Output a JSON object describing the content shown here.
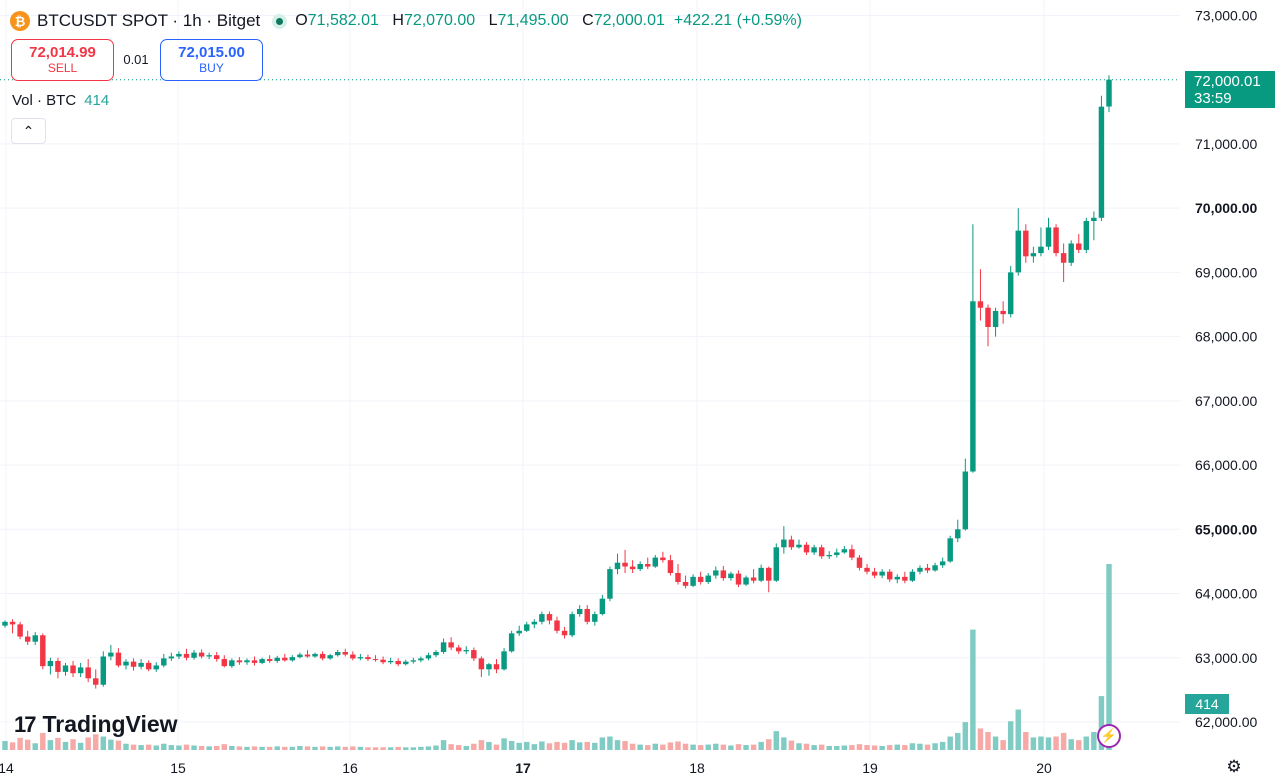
{
  "header": {
    "symbol_title": "BTCUSDT SPOT · 1h · Bitget",
    "open_label": "O",
    "open": "71,582.01",
    "high_label": "H",
    "high": "72,070.00",
    "low_label": "L",
    "low": "71,495.00",
    "close_label": "C",
    "close": "72,000.01",
    "change": "+422.21 (+0.59%)",
    "coin_icon": "bitcoin-icon",
    "coin_symbol": "₿"
  },
  "trade": {
    "sell_price": "72,014.99",
    "sell_label": "SELL",
    "spread": "0.01",
    "buy_price": "72,015.00",
    "buy_label": "BUY"
  },
  "volume_legend": {
    "label": "Vol · BTC",
    "value": "414"
  },
  "collapse_icon": "chevron-up-icon",
  "collapse_glyph": "⌃",
  "brand": {
    "mark": "17",
    "name": "TradingView"
  },
  "price_tag": {
    "price": "72,000.01",
    "countdown": "33:59"
  },
  "volume_tag": "414",
  "colors": {
    "up": "#089981",
    "down": "#f23645",
    "up_volume": "#80cbc4",
    "down_volume": "#f7a9a7",
    "brand": "#2962ff"
  },
  "chart_data": {
    "type": "candlestick",
    "interval": "1h",
    "ylim": [
      61800,
      73250
    ],
    "y_ticks": [
      "73,000.00",
      "71,000.00",
      "70,000.00",
      "69,000.00",
      "68,000.00",
      "67,000.00",
      "66,000.00",
      "65,000.00",
      "64,000.00",
      "63,000.00",
      "62,000.00"
    ],
    "y_tick_values": [
      73000,
      71000,
      70000,
      69000,
      68000,
      67000,
      66000,
      65000,
      64000,
      63000,
      62000
    ],
    "bold_ticks": [
      "70,000.00",
      "65,000.00"
    ],
    "x_ticks": [
      "14",
      "15",
      "16",
      "17",
      "18",
      "19",
      "20"
    ],
    "bold_x_ticks": [
      "17"
    ],
    "last_price": 72000.01,
    "candles": [
      {
        "o": 63500,
        "h": 63580,
        "c": 63560,
        "l": 63470,
        "v": 20
      },
      {
        "o": 63560,
        "h": 63600,
        "c": 63520,
        "l": 63380,
        "v": 17
      },
      {
        "o": 63520,
        "h": 63560,
        "c": 63330,
        "l": 63290,
        "v": 27
      },
      {
        "o": 63330,
        "h": 63420,
        "c": 63250,
        "l": 63200,
        "v": 23
      },
      {
        "o": 63250,
        "h": 63400,
        "c": 63350,
        "l": 63200,
        "v": 15
      },
      {
        "o": 63350,
        "h": 63380,
        "c": 62870,
        "l": 62820,
        "v": 38
      },
      {
        "o": 62870,
        "h": 63000,
        "c": 62950,
        "l": 62740,
        "v": 22
      },
      {
        "o": 62950,
        "h": 63000,
        "c": 62780,
        "l": 62680,
        "v": 27
      },
      {
        "o": 62780,
        "h": 62920,
        "c": 62880,
        "l": 62720,
        "v": 18
      },
      {
        "o": 62880,
        "h": 62950,
        "c": 62760,
        "l": 62700,
        "v": 24
      },
      {
        "o": 62760,
        "h": 62920,
        "c": 62850,
        "l": 62700,
        "v": 16
      },
      {
        "o": 62850,
        "h": 62980,
        "c": 62680,
        "l": 62620,
        "v": 28
      },
      {
        "o": 62680,
        "h": 62820,
        "c": 62580,
        "l": 62520,
        "v": 35
      },
      {
        "o": 62580,
        "h": 63100,
        "c": 63020,
        "l": 62550,
        "v": 30
      },
      {
        "o": 63020,
        "h": 63200,
        "c": 63080,
        "l": 62960,
        "v": 23
      },
      {
        "o": 63080,
        "h": 63150,
        "c": 62880,
        "l": 62850,
        "v": 21
      },
      {
        "o": 62880,
        "h": 62980,
        "c": 62940,
        "l": 62820,
        "v": 14
      },
      {
        "o": 62940,
        "h": 62990,
        "c": 62860,
        "l": 62800,
        "v": 12
      },
      {
        "o": 62860,
        "h": 62980,
        "c": 62920,
        "l": 62820,
        "v": 11
      },
      {
        "o": 62920,
        "h": 62960,
        "c": 62820,
        "l": 62790,
        "v": 12
      },
      {
        "o": 62820,
        "h": 62930,
        "c": 62880,
        "l": 62780,
        "v": 10
      },
      {
        "o": 62880,
        "h": 63060,
        "c": 62990,
        "l": 62850,
        "v": 14
      },
      {
        "o": 62990,
        "h": 63080,
        "c": 63020,
        "l": 62950,
        "v": 11
      },
      {
        "o": 63020,
        "h": 63100,
        "c": 63060,
        "l": 62980,
        "v": 10
      },
      {
        "o": 63060,
        "h": 63140,
        "c": 63000,
        "l": 62960,
        "v": 12
      },
      {
        "o": 63000,
        "h": 63120,
        "c": 63080,
        "l": 62970,
        "v": 10
      },
      {
        "o": 63080,
        "h": 63130,
        "c": 63020,
        "l": 62990,
        "v": 9
      },
      {
        "o": 63020,
        "h": 63080,
        "c": 63040,
        "l": 62980,
        "v": 8
      },
      {
        "o": 63040,
        "h": 63090,
        "c": 62980,
        "l": 62940,
        "v": 9
      },
      {
        "o": 62980,
        "h": 63040,
        "c": 62870,
        "l": 62850,
        "v": 13
      },
      {
        "o": 62870,
        "h": 62990,
        "c": 62960,
        "l": 62840,
        "v": 9
      },
      {
        "o": 62960,
        "h": 63010,
        "c": 62930,
        "l": 62890,
        "v": 8
      },
      {
        "o": 62930,
        "h": 62990,
        "c": 62960,
        "l": 62890,
        "v": 7
      },
      {
        "o": 62960,
        "h": 63020,
        "c": 62920,
        "l": 62880,
        "v": 8
      },
      {
        "o": 62920,
        "h": 63000,
        "c": 62980,
        "l": 62900,
        "v": 7
      },
      {
        "o": 62980,
        "h": 63040,
        "c": 62950,
        "l": 62920,
        "v": 7
      },
      {
        "o": 62950,
        "h": 63030,
        "c": 63000,
        "l": 62920,
        "v": 8
      },
      {
        "o": 63000,
        "h": 63060,
        "c": 62960,
        "l": 62940,
        "v": 7
      },
      {
        "o": 62960,
        "h": 63040,
        "c": 63010,
        "l": 62940,
        "v": 7
      },
      {
        "o": 63010,
        "h": 63080,
        "c": 63050,
        "l": 62990,
        "v": 9
      },
      {
        "o": 63050,
        "h": 63120,
        "c": 63020,
        "l": 63000,
        "v": 8
      },
      {
        "o": 63020,
        "h": 63080,
        "c": 63060,
        "l": 63000,
        "v": 7
      },
      {
        "o": 63060,
        "h": 63100,
        "c": 62990,
        "l": 62960,
        "v": 8
      },
      {
        "o": 62990,
        "h": 63060,
        "c": 63040,
        "l": 62970,
        "v": 7
      },
      {
        "o": 63040,
        "h": 63120,
        "c": 63090,
        "l": 63020,
        "v": 8
      },
      {
        "o": 63090,
        "h": 63140,
        "c": 63050,
        "l": 63020,
        "v": 7
      },
      {
        "o": 63050,
        "h": 63100,
        "c": 62990,
        "l": 62960,
        "v": 8
      },
      {
        "o": 62990,
        "h": 63060,
        "c": 63010,
        "l": 62960,
        "v": 7
      },
      {
        "o": 63010,
        "h": 63050,
        "c": 62980,
        "l": 62950,
        "v": 6
      },
      {
        "o": 62980,
        "h": 63040,
        "c": 62970,
        "l": 62940,
        "v": 6
      },
      {
        "o": 62970,
        "h": 63020,
        "c": 62930,
        "l": 62900,
        "v": 6
      },
      {
        "o": 62930,
        "h": 63000,
        "c": 62950,
        "l": 62900,
        "v": 6
      },
      {
        "o": 62950,
        "h": 62990,
        "c": 62900,
        "l": 62870,
        "v": 7
      },
      {
        "o": 62900,
        "h": 62970,
        "c": 62940,
        "l": 62880,
        "v": 6
      },
      {
        "o": 62940,
        "h": 63000,
        "c": 62960,
        "l": 62910,
        "v": 6
      },
      {
        "o": 62960,
        "h": 63020,
        "c": 62990,
        "l": 62930,
        "v": 7
      },
      {
        "o": 62990,
        "h": 63080,
        "c": 63040,
        "l": 62960,
        "v": 8
      },
      {
        "o": 63040,
        "h": 63120,
        "c": 63090,
        "l": 63010,
        "v": 10
      },
      {
        "o": 63090,
        "h": 63300,
        "c": 63240,
        "l": 63060,
        "v": 22
      },
      {
        "o": 63240,
        "h": 63320,
        "c": 63160,
        "l": 63120,
        "v": 13
      },
      {
        "o": 63160,
        "h": 63200,
        "c": 63100,
        "l": 63060,
        "v": 11
      },
      {
        "o": 63100,
        "h": 63180,
        "c": 63120,
        "l": 63060,
        "v": 9
      },
      {
        "o": 63120,
        "h": 63160,
        "c": 62990,
        "l": 62950,
        "v": 14
      },
      {
        "o": 62990,
        "h": 63020,
        "c": 62820,
        "l": 62700,
        "v": 22
      },
      {
        "o": 62820,
        "h": 62920,
        "c": 62900,
        "l": 62720,
        "v": 18
      },
      {
        "o": 62900,
        "h": 62980,
        "c": 62820,
        "l": 62760,
        "v": 12
      },
      {
        "o": 62820,
        "h": 63150,
        "c": 63100,
        "l": 62800,
        "v": 26
      },
      {
        "o": 63100,
        "h": 63420,
        "c": 63380,
        "l": 63080,
        "v": 20
      },
      {
        "o": 63380,
        "h": 63500,
        "c": 63420,
        "l": 63340,
        "v": 16
      },
      {
        "o": 63420,
        "h": 63560,
        "c": 63520,
        "l": 63400,
        "v": 18
      },
      {
        "o": 63520,
        "h": 63600,
        "c": 63560,
        "l": 63460,
        "v": 13
      },
      {
        "o": 63560,
        "h": 63720,
        "c": 63680,
        "l": 63520,
        "v": 19
      },
      {
        "o": 63680,
        "h": 63720,
        "c": 63580,
        "l": 63520,
        "v": 15
      },
      {
        "o": 63580,
        "h": 63640,
        "c": 63420,
        "l": 63380,
        "v": 18
      },
      {
        "o": 63420,
        "h": 63480,
        "c": 63350,
        "l": 63300,
        "v": 16
      },
      {
        "o": 63350,
        "h": 63720,
        "c": 63680,
        "l": 63320,
        "v": 22
      },
      {
        "o": 63680,
        "h": 63820,
        "c": 63760,
        "l": 63640,
        "v": 17
      },
      {
        "o": 63760,
        "h": 63820,
        "c": 63560,
        "l": 63520,
        "v": 18
      },
      {
        "o": 63560,
        "h": 63720,
        "c": 63680,
        "l": 63500,
        "v": 16
      },
      {
        "o": 63680,
        "h": 63980,
        "c": 63920,
        "l": 63660,
        "v": 28
      },
      {
        "o": 63920,
        "h": 64420,
        "c": 64380,
        "l": 63880,
        "v": 30
      },
      {
        "o": 64380,
        "h": 64620,
        "c": 64480,
        "l": 64300,
        "v": 22
      },
      {
        "o": 64480,
        "h": 64680,
        "c": 64420,
        "l": 64320,
        "v": 20
      },
      {
        "o": 64420,
        "h": 64520,
        "c": 64380,
        "l": 64320,
        "v": 14
      },
      {
        "o": 64380,
        "h": 64500,
        "c": 64460,
        "l": 64350,
        "v": 12
      },
      {
        "o": 64460,
        "h": 64560,
        "c": 64420,
        "l": 64380,
        "v": 11
      },
      {
        "o": 64420,
        "h": 64600,
        "c": 64560,
        "l": 64400,
        "v": 14
      },
      {
        "o": 64560,
        "h": 64650,
        "c": 64520,
        "l": 64480,
        "v": 12
      },
      {
        "o": 64520,
        "h": 64600,
        "c": 64320,
        "l": 64280,
        "v": 17
      },
      {
        "o": 64320,
        "h": 64460,
        "c": 64180,
        "l": 64140,
        "v": 19
      },
      {
        "o": 64180,
        "h": 64280,
        "c": 64120,
        "l": 64080,
        "v": 14
      },
      {
        "o": 64120,
        "h": 64300,
        "c": 64260,
        "l": 64100,
        "v": 12
      },
      {
        "o": 64260,
        "h": 64340,
        "c": 64180,
        "l": 64140,
        "v": 11
      },
      {
        "o": 64180,
        "h": 64320,
        "c": 64280,
        "l": 64150,
        "v": 12
      },
      {
        "o": 64280,
        "h": 64420,
        "c": 64360,
        "l": 64230,
        "v": 14
      },
      {
        "o": 64360,
        "h": 64430,
        "c": 64240,
        "l": 64200,
        "v": 12
      },
      {
        "o": 64240,
        "h": 64340,
        "c": 64310,
        "l": 64200,
        "v": 10
      },
      {
        "o": 64310,
        "h": 64360,
        "c": 64140,
        "l": 64100,
        "v": 13
      },
      {
        "o": 64140,
        "h": 64280,
        "c": 64250,
        "l": 64120,
        "v": 11
      },
      {
        "o": 64250,
        "h": 64380,
        "c": 64200,
        "l": 64160,
        "v": 12
      },
      {
        "o": 64200,
        "h": 64450,
        "c": 64400,
        "l": 64180,
        "v": 18
      },
      {
        "o": 64400,
        "h": 64420,
        "c": 64200,
        "l": 64020,
        "v": 24
      },
      {
        "o": 64200,
        "h": 64780,
        "c": 64720,
        "l": 64180,
        "v": 42
      },
      {
        "o": 64720,
        "h": 65050,
        "c": 64840,
        "l": 64620,
        "v": 28
      },
      {
        "o": 64840,
        "h": 64900,
        "c": 64720,
        "l": 64680,
        "v": 21
      },
      {
        "o": 64720,
        "h": 64840,
        "c": 64760,
        "l": 64700,
        "v": 15
      },
      {
        "o": 64760,
        "h": 64800,
        "c": 64640,
        "l": 64600,
        "v": 14
      },
      {
        "o": 64640,
        "h": 64760,
        "c": 64720,
        "l": 64600,
        "v": 11
      },
      {
        "o": 64720,
        "h": 64760,
        "c": 64580,
        "l": 64540,
        "v": 12
      },
      {
        "o": 64580,
        "h": 64660,
        "c": 64600,
        "l": 64540,
        "v": 9
      },
      {
        "o": 64600,
        "h": 64700,
        "c": 64640,
        "l": 64560,
        "v": 9
      },
      {
        "o": 64640,
        "h": 64740,
        "c": 64690,
        "l": 64620,
        "v": 10
      },
      {
        "o": 64690,
        "h": 64760,
        "c": 64560,
        "l": 64520,
        "v": 11
      },
      {
        "o": 64560,
        "h": 64600,
        "c": 64400,
        "l": 64360,
        "v": 13
      },
      {
        "o": 64400,
        "h": 64460,
        "c": 64340,
        "l": 64300,
        "v": 11
      },
      {
        "o": 64340,
        "h": 64400,
        "c": 64280,
        "l": 64240,
        "v": 10
      },
      {
        "o": 64280,
        "h": 64380,
        "c": 64340,
        "l": 64240,
        "v": 9
      },
      {
        "o": 64340,
        "h": 64380,
        "c": 64220,
        "l": 64180,
        "v": 11
      },
      {
        "o": 64220,
        "h": 64300,
        "c": 64260,
        "l": 64160,
        "v": 12
      },
      {
        "o": 64260,
        "h": 64340,
        "c": 64200,
        "l": 64160,
        "v": 11
      },
      {
        "o": 64200,
        "h": 64380,
        "c": 64340,
        "l": 64180,
        "v": 15
      },
      {
        "o": 64340,
        "h": 64440,
        "c": 64400,
        "l": 64300,
        "v": 14
      },
      {
        "o": 64400,
        "h": 64460,
        "c": 64360,
        "l": 64320,
        "v": 12
      },
      {
        "o": 64360,
        "h": 64480,
        "c": 64440,
        "l": 64340,
        "v": 15
      },
      {
        "o": 64440,
        "h": 64560,
        "c": 64500,
        "l": 64400,
        "v": 18
      },
      {
        "o": 64500,
        "h": 64900,
        "c": 64860,
        "l": 64480,
        "v": 30
      },
      {
        "o": 64860,
        "h": 65150,
        "c": 65000,
        "l": 64800,
        "v": 38
      },
      {
        "o": 65000,
        "h": 66100,
        "c": 65900,
        "l": 64980,
        "v": 62
      },
      {
        "o": 65900,
        "h": 69750,
        "c": 68550,
        "l": 65880,
        "v": 268
      },
      {
        "o": 68550,
        "h": 69050,
        "c": 68450,
        "l": 68250,
        "v": 48
      },
      {
        "o": 68450,
        "h": 68500,
        "c": 68150,
        "l": 67850,
        "v": 40
      },
      {
        "o": 68150,
        "h": 68450,
        "c": 68400,
        "l": 68000,
        "v": 30
      },
      {
        "o": 68400,
        "h": 68550,
        "c": 68350,
        "l": 68200,
        "v": 22
      },
      {
        "o": 68350,
        "h": 69100,
        "c": 69000,
        "l": 68300,
        "v": 64
      },
      {
        "o": 69000,
        "h": 70000,
        "c": 69650,
        "l": 68950,
        "v": 90
      },
      {
        "o": 69650,
        "h": 69750,
        "c": 69250,
        "l": 69150,
        "v": 40
      },
      {
        "o": 69250,
        "h": 69400,
        "c": 69300,
        "l": 69150,
        "v": 28
      },
      {
        "o": 69300,
        "h": 69700,
        "c": 69400,
        "l": 69250,
        "v": 30
      },
      {
        "o": 69400,
        "h": 69850,
        "c": 69700,
        "l": 69350,
        "v": 28
      },
      {
        "o": 69700,
        "h": 69750,
        "c": 69300,
        "l": 69250,
        "v": 30
      },
      {
        "o": 69300,
        "h": 69450,
        "c": 69150,
        "l": 68850,
        "v": 38
      },
      {
        "o": 69150,
        "h": 69500,
        "c": 69450,
        "l": 69100,
        "v": 24
      },
      {
        "o": 69450,
        "h": 69600,
        "c": 69350,
        "l": 69300,
        "v": 22
      },
      {
        "o": 69350,
        "h": 69850,
        "c": 69800,
        "l": 69300,
        "v": 30
      },
      {
        "o": 69800,
        "h": 69950,
        "c": 69850,
        "l": 69500,
        "v": 40
      },
      {
        "o": 69850,
        "h": 71750,
        "c": 71580,
        "l": 69800,
        "v": 120
      },
      {
        "o": 71582.01,
        "h": 72070,
        "c": 72000.01,
        "l": 71495,
        "v": 414
      }
    ]
  }
}
